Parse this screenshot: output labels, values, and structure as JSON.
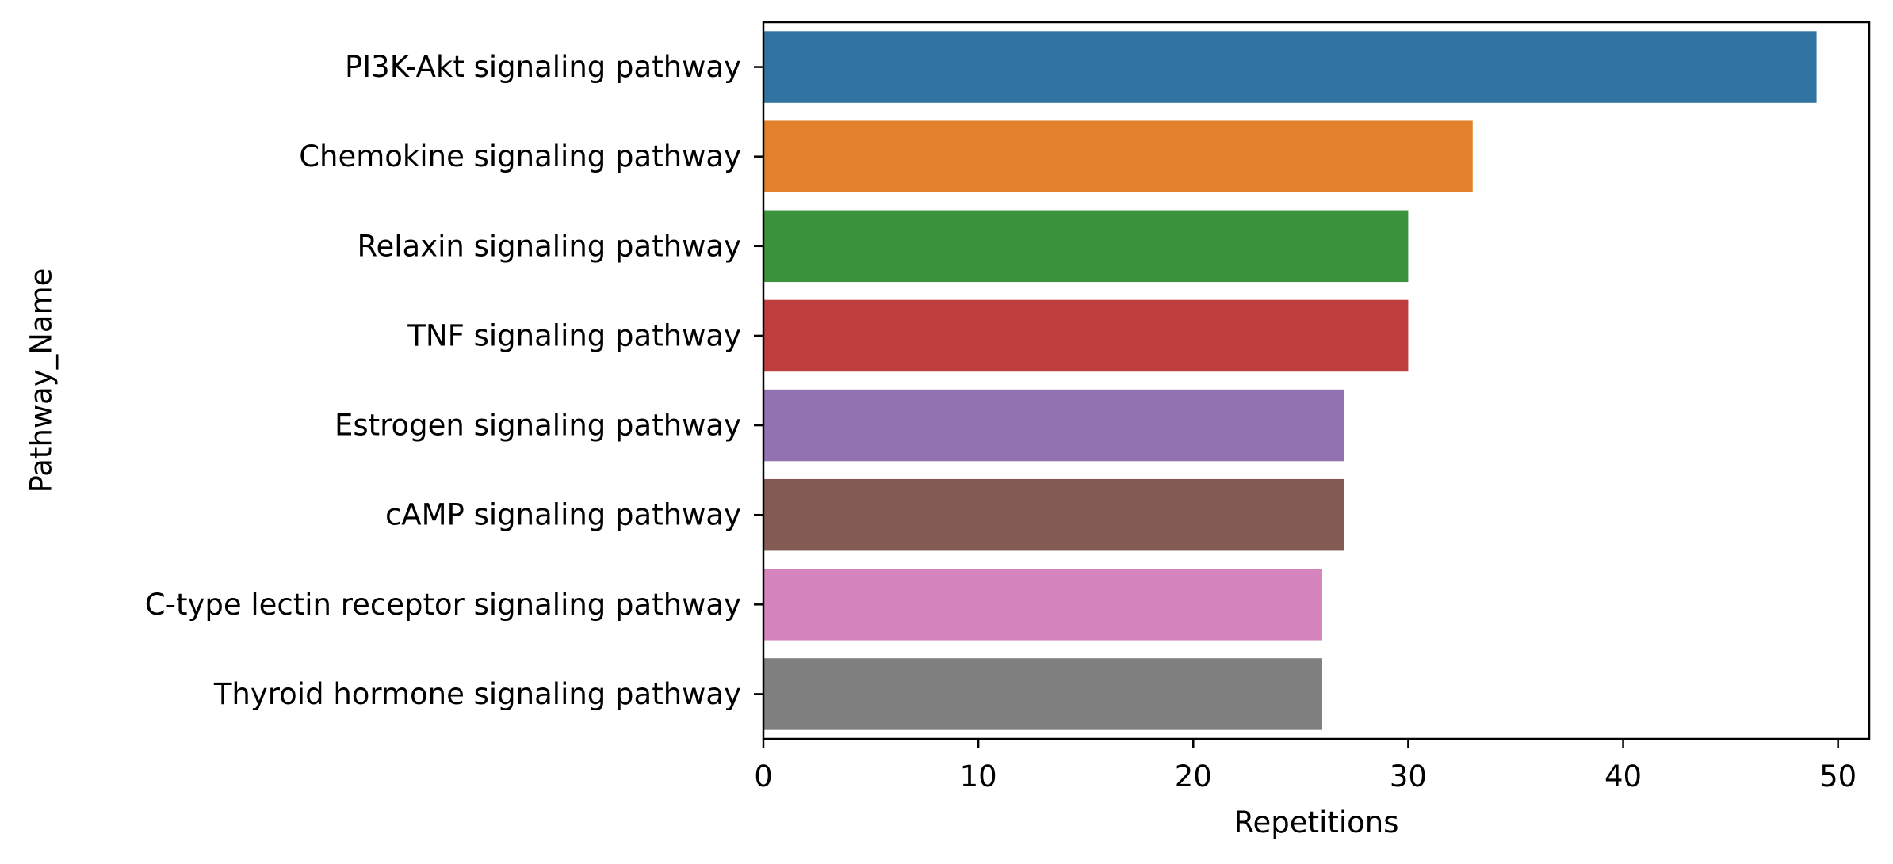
{
  "chart_data": {
    "type": "bar",
    "orientation": "horizontal",
    "categories": [
      "PI3K-Akt signaling pathway",
      "Chemokine signaling pathway",
      "Relaxin signaling pathway",
      "TNF signaling pathway",
      "Estrogen signaling pathway",
      "cAMP signaling pathway",
      "C-type lectin receptor signaling pathway",
      "Thyroid hormone signaling pathway"
    ],
    "values": [
      49,
      33,
      30,
      30,
      27,
      27,
      26,
      26
    ],
    "colors": [
      "#3274a1",
      "#e1812c",
      "#3a923a",
      "#c03d3e",
      "#9372b2",
      "#845b53",
      "#d684bd",
      "#7f7f7f"
    ],
    "xlabel": "Repetitions",
    "ylabel": "Pathway_Name",
    "xlim": [
      0,
      51.45
    ],
    "xticks": [
      0,
      10,
      20,
      30,
      40,
      50
    ],
    "grid": false,
    "legend": "none"
  }
}
